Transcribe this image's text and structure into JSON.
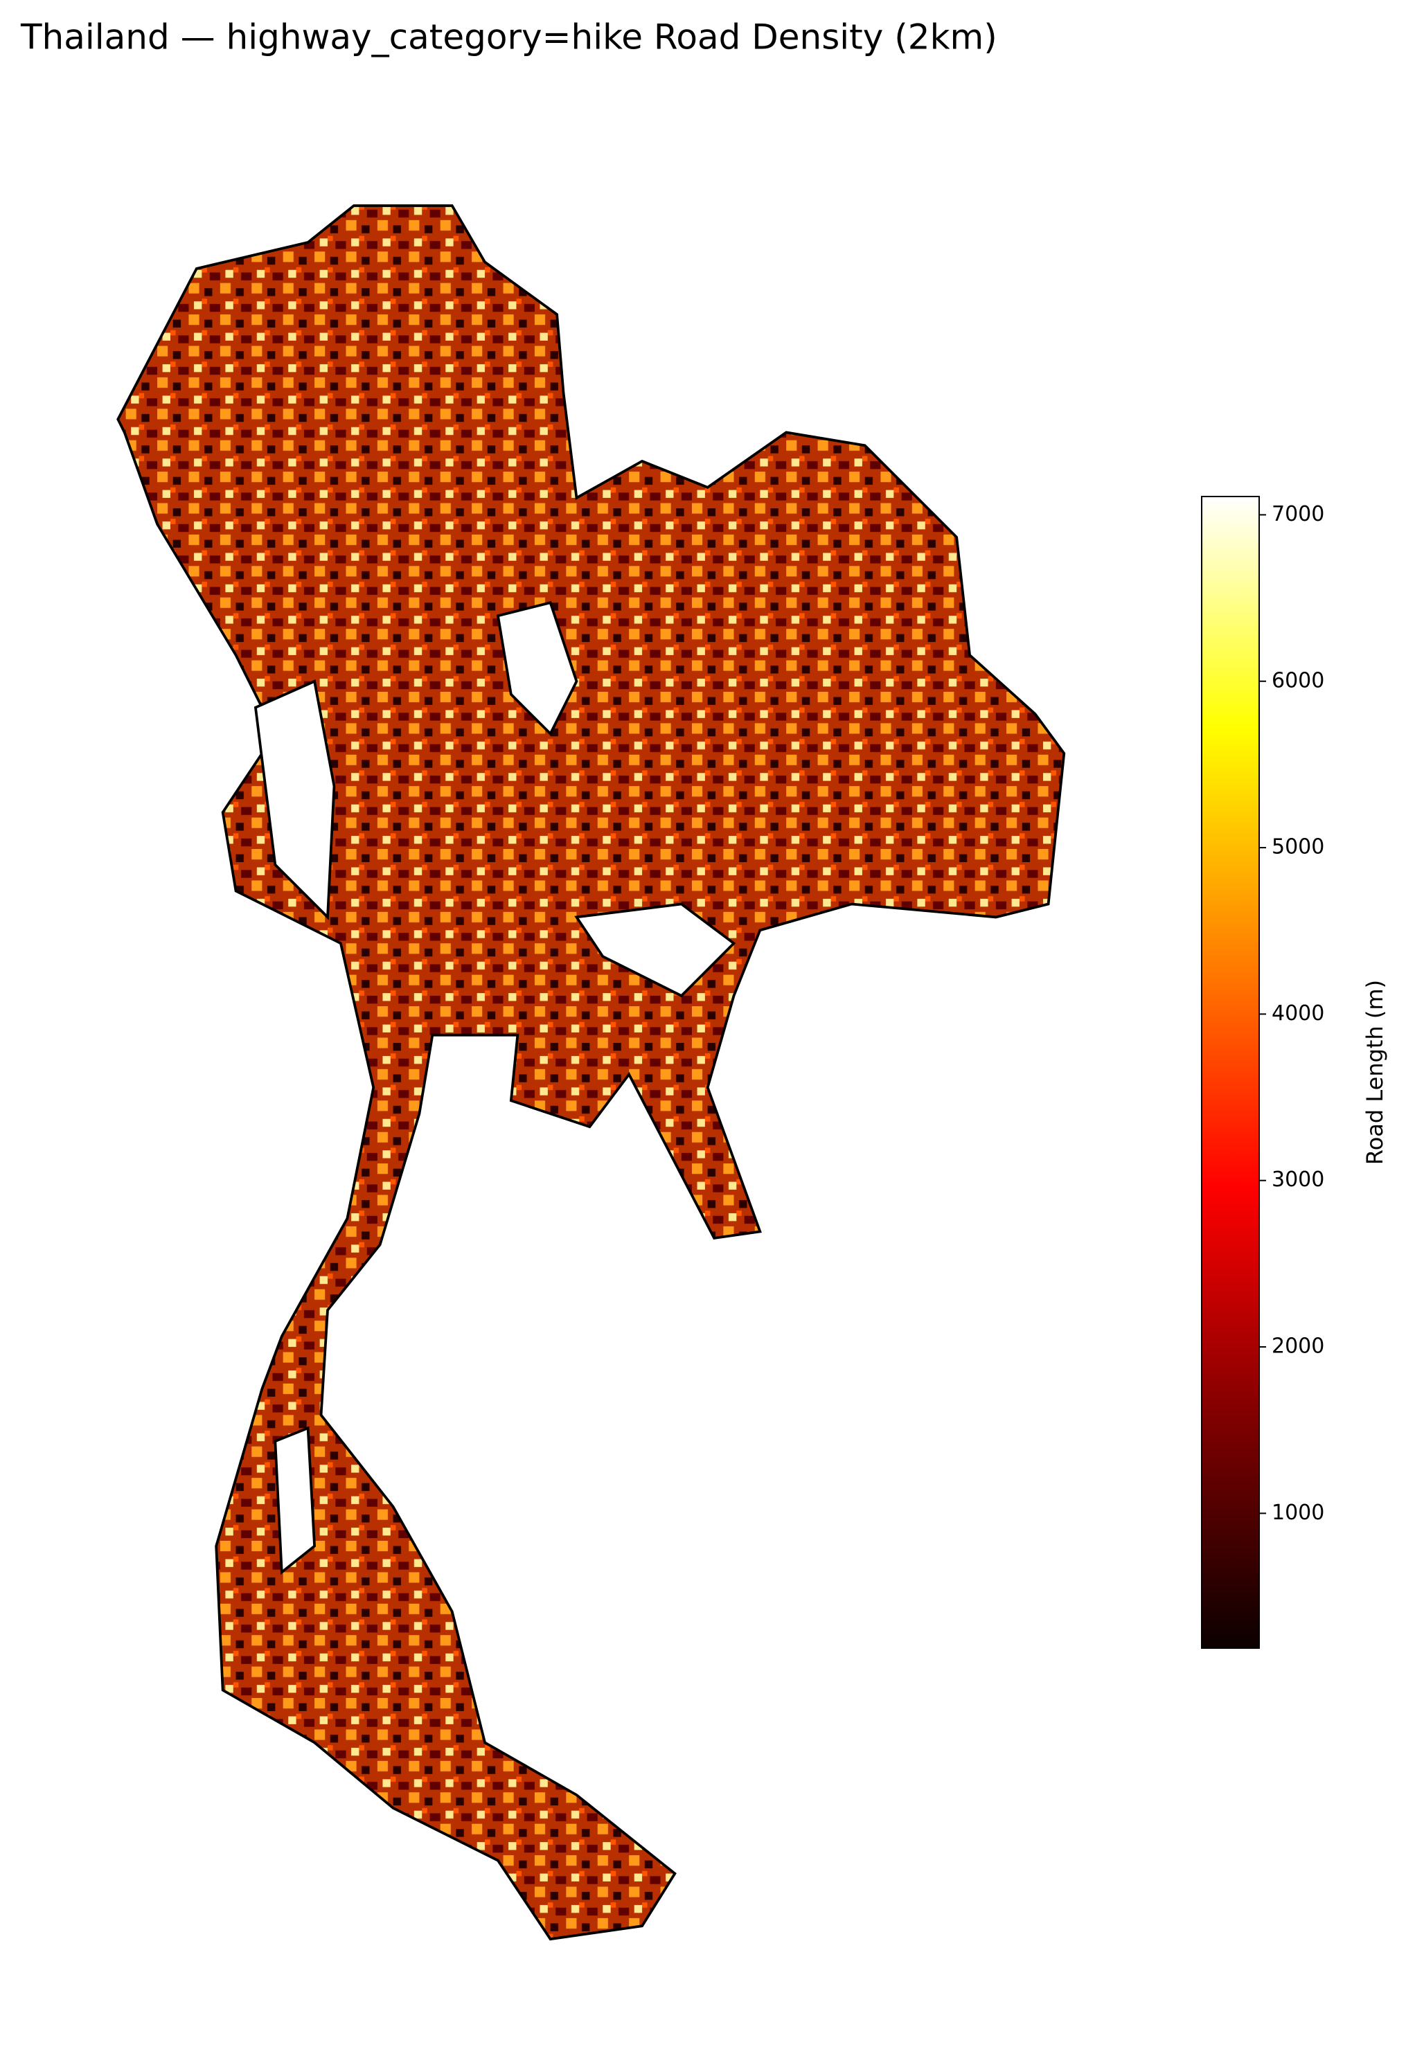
{
  "title": "Thailand — highway_category=hike Road Density (2km)",
  "colorbar": {
    "label": "Road Length (m)",
    "lim": [
      190,
      7110
    ],
    "ticks": [
      1000,
      2000,
      3000,
      4000,
      5000,
      6000,
      7000
    ],
    "colormap": [
      "#0b0000",
      "#800000",
      "#ff0000",
      "#ff8000",
      "#ffff00",
      "#ffffff"
    ]
  }
}
